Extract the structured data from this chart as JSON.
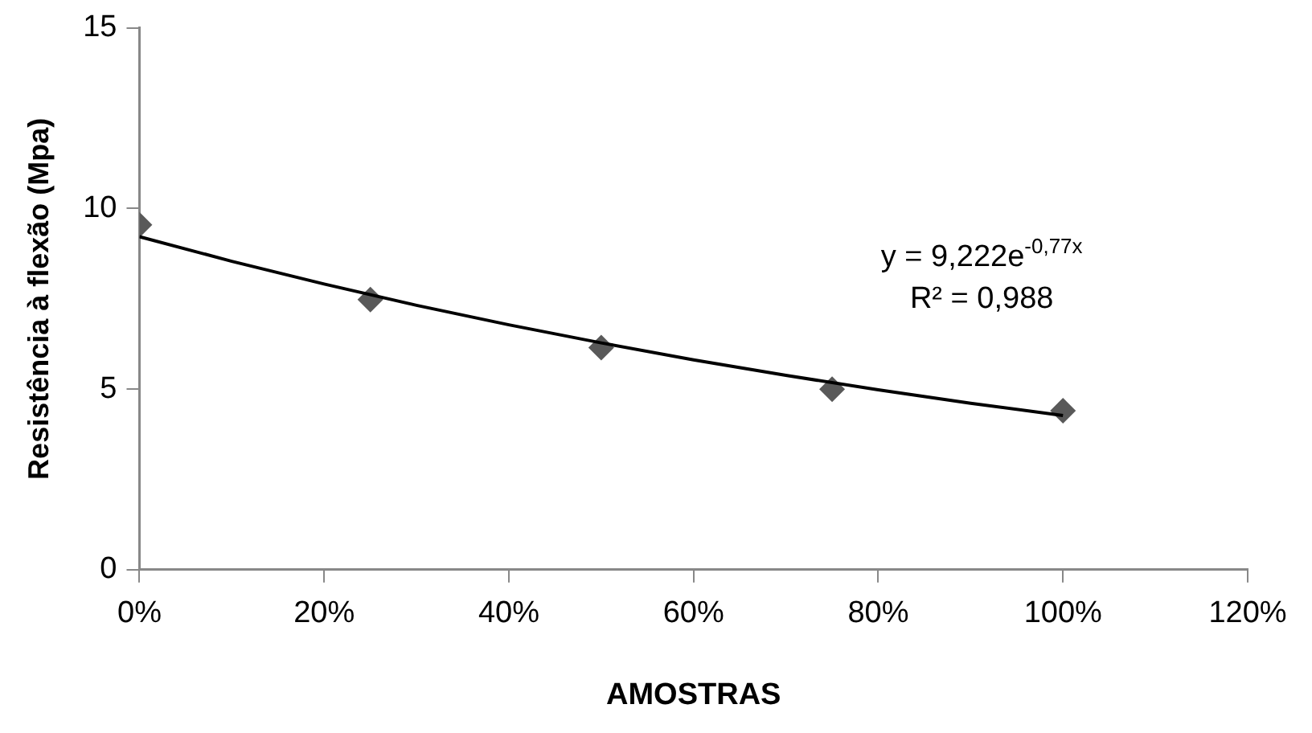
{
  "chart_data": {
    "type": "scatter",
    "xlabel": "AMOSTRAS",
    "ylabel": "Resistência à flexão (Mpa)",
    "x": [
      0,
      25,
      50,
      75,
      100
    ],
    "series": [
      {
        "type": "scatter",
        "color": "#595959",
        "marker": "diamond",
        "values": [
          9.55,
          7.48,
          6.15,
          5.0,
          4.4
        ]
      },
      {
        "type": "line",
        "color": "#000000",
        "marker": "none",
        "x": [
          0,
          10,
          20,
          30,
          40,
          50,
          60,
          70,
          80,
          90,
          100
        ],
        "values": [
          9.22,
          8.54,
          7.91,
          7.32,
          6.78,
          6.28,
          5.81,
          5.38,
          4.98,
          4.61,
          4.27
        ]
      }
    ],
    "xlim": [
      0,
      120
    ],
    "xticks": [
      {
        "value": 0,
        "label": "0%"
      },
      {
        "value": 20,
        "label": "20%"
      },
      {
        "value": 40,
        "label": "40%"
      },
      {
        "value": 60,
        "label": "60%"
      },
      {
        "value": 80,
        "label": "80%"
      },
      {
        "value": 100,
        "label": "100%"
      },
      {
        "value": 120,
        "label": "120%"
      }
    ],
    "ylim": [
      0,
      15
    ],
    "yticks": [
      0,
      5,
      10,
      15
    ],
    "grid": false,
    "legend": false,
    "annotations": [
      "y = 9,222e$^{-0,77x}$",
      "R² = 0,988"
    ]
  }
}
